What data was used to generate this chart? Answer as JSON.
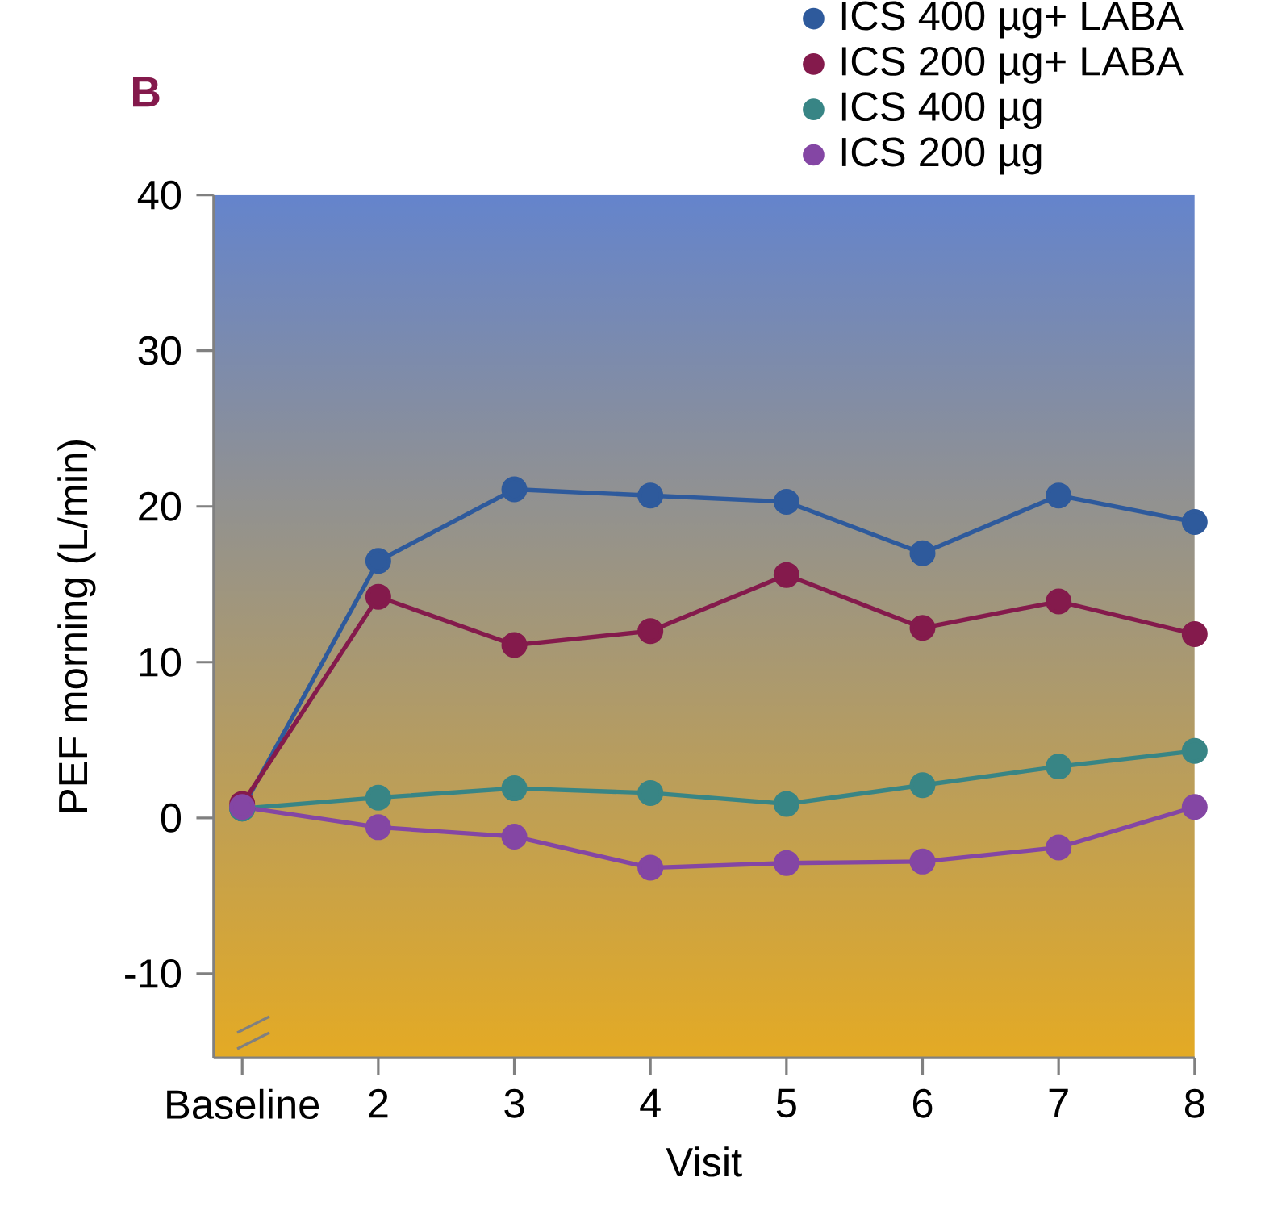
{
  "chart_data": {
    "type": "line",
    "title": "B",
    "xlabel": "Visit",
    "ylabel": "PEF morning (L/min)",
    "categories": [
      "Baseline",
      "2",
      "3",
      "4",
      "5",
      "6",
      "7",
      "8"
    ],
    "series": [
      {
        "name": "ICS 400 µg+ LABA",
        "color": "#2e5a9c",
        "values": [
          0.6,
          16.5,
          21.1,
          20.7,
          20.3,
          17.0,
          20.7,
          19.0
        ]
      },
      {
        "name": "ICS 200 µg+ LABA",
        "color": "#841a4c",
        "values": [
          0.9,
          14.2,
          11.1,
          12.0,
          15.6,
          12.2,
          13.9,
          11.8
        ]
      },
      {
        "name": "ICS 400 µg",
        "color": "#388585",
        "values": [
          0.6,
          1.3,
          1.9,
          1.6,
          0.9,
          2.1,
          3.3,
          4.3
        ]
      },
      {
        "name": "ICS 200 µg",
        "color": "#8446a4",
        "values": [
          0.7,
          -0.6,
          -1.2,
          -3.2,
          -2.9,
          -2.8,
          -1.9,
          0.7
        ]
      }
    ],
    "ylim": [
      -15.4,
      40
    ],
    "yticks": [
      -10,
      0,
      10,
      20,
      30,
      40
    ],
    "legend": "top right",
    "marker": "circle",
    "line_style": "solid",
    "grid": false
  }
}
